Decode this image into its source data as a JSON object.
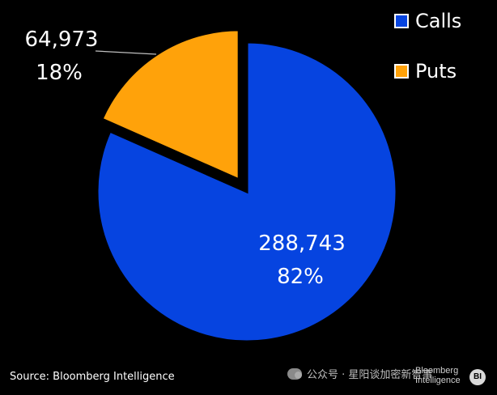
{
  "chart_data": {
    "type": "pie",
    "title": "",
    "slices": [
      {
        "name": "Calls",
        "value": 288743,
        "value_label": "288,743",
        "percent_label": "82%",
        "color": "#0644e0"
      },
      {
        "name": "Puts",
        "value": 64973,
        "value_label": "64,973",
        "percent_label": "18%",
        "color": "#ffa20a"
      }
    ],
    "exploded": "Puts",
    "legend": "top-right"
  },
  "source": "Source: Bloomberg Intelligence",
  "watermark": {
    "text": "公众号 · 星阳谈加密新智事",
    "icon": "wechat-icon"
  },
  "logo": {
    "line1": "Bloomberg",
    "line2": "Intelligence",
    "badge": "BI"
  }
}
